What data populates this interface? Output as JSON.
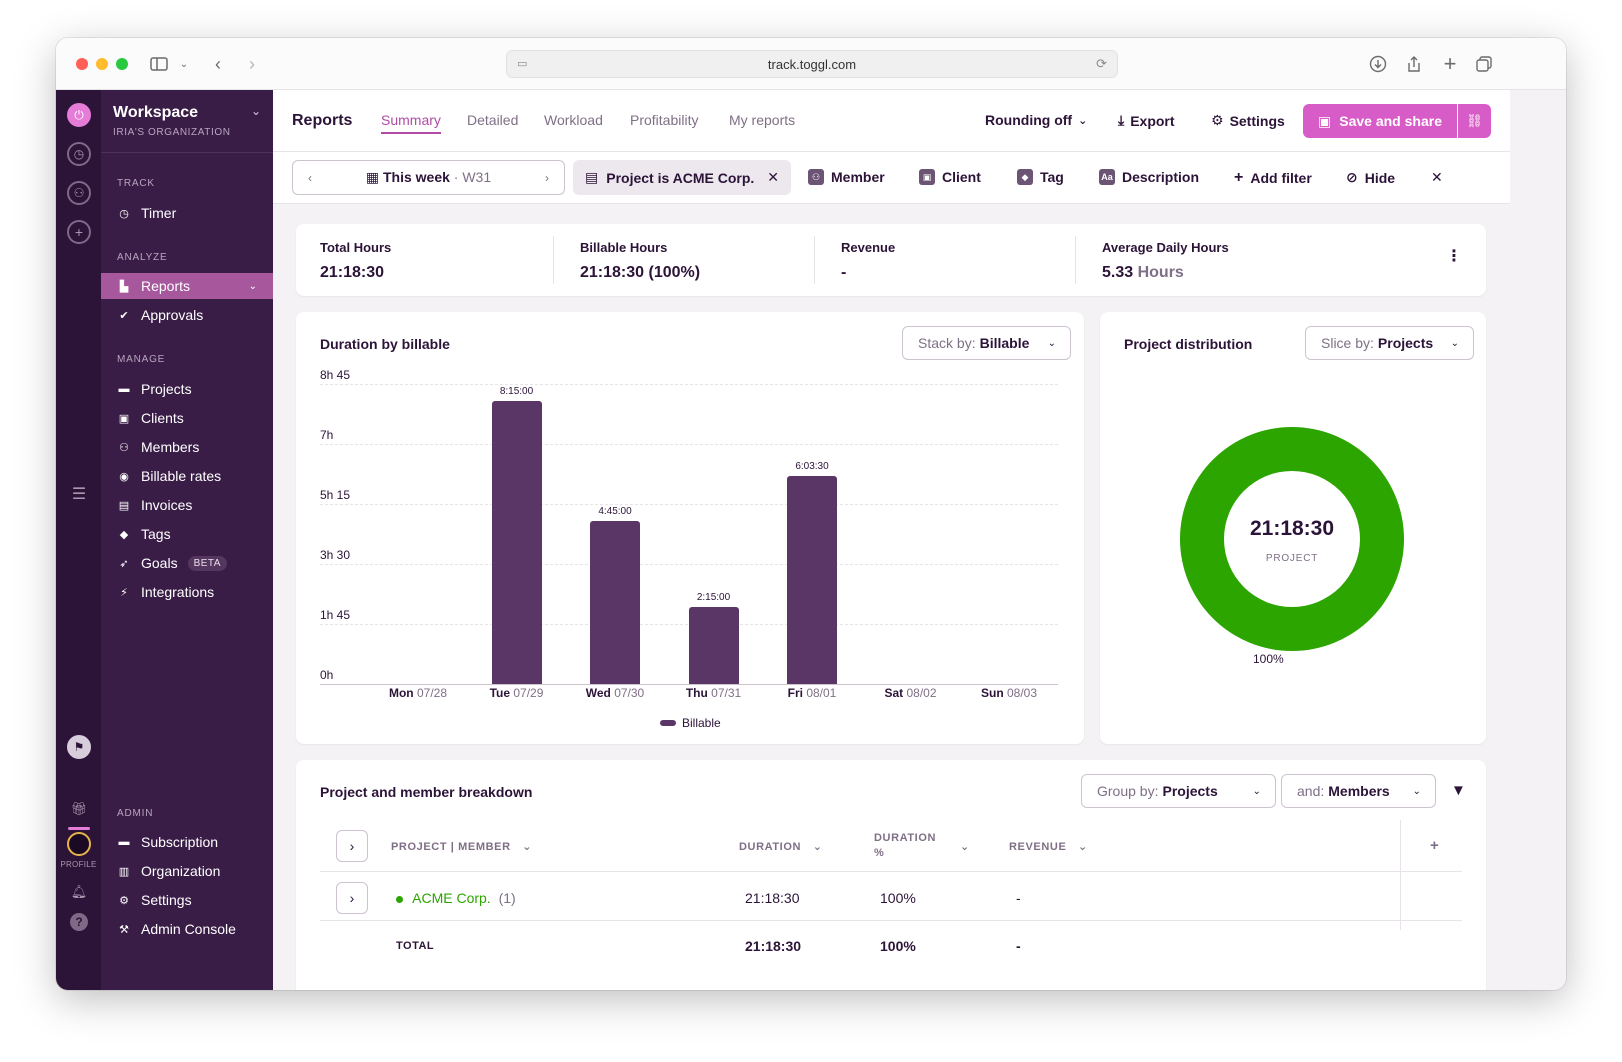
{
  "browser": {
    "url": "track.toggl.com"
  },
  "rail": {
    "profile_label": "PROFILE"
  },
  "sidebar": {
    "workspace_title": "Workspace",
    "workspace_sub": "IRIA'S ORGANIZATION",
    "sections": {
      "track": "TRACK",
      "analyze": "ANALYZE",
      "manage": "MANAGE",
      "admin": "ADMIN"
    },
    "items": {
      "timer": "Timer",
      "reports": "Reports",
      "approvals": "Approvals",
      "projects": "Projects",
      "clients": "Clients",
      "members": "Members",
      "billable_rates": "Billable rates",
      "invoices": "Invoices",
      "tags": "Tags",
      "goals": "Goals",
      "goals_badge": "BETA",
      "integrations": "Integrations",
      "subscription": "Subscription",
      "organization": "Organization",
      "settings": "Settings",
      "admin_console": "Admin Console"
    }
  },
  "header": {
    "title": "Reports",
    "tabs": [
      "Summary",
      "Detailed",
      "Workload",
      "Profitability",
      "My reports"
    ],
    "rounding": "Rounding off",
    "export": "Export",
    "settings": "Settings",
    "save": "Save and share"
  },
  "filters": {
    "week_label": "This week",
    "week_sep": "·",
    "week_num": "W31",
    "project_chip": "Project is ACME Corp.",
    "member": "Member",
    "client": "Client",
    "tag": "Tag",
    "description": "Description",
    "add_filter": "Add filter",
    "hide": "Hide"
  },
  "summary": {
    "total_hours_label": "Total Hours",
    "total_hours_value": "21:18:30",
    "billable_label": "Billable Hours",
    "billable_value": "21:18:30 (100%)",
    "revenue_label": "Revenue",
    "revenue_value": "-",
    "avg_label": "Average Daily Hours",
    "avg_value": "5.33",
    "avg_unit": "Hours"
  },
  "bar_chart": {
    "title": "Duration by billable",
    "stack_prefix": "Stack by:",
    "stack_value": "Billable"
  },
  "chart_data": [
    {
      "type": "bar",
      "title": "Duration by billable",
      "unit": "hours",
      "yticks": [
        "0h",
        "1h 45",
        "3h 30",
        "5h 15",
        "7h",
        "8h 45"
      ],
      "ylim": [
        0,
        8.75
      ],
      "categories": [
        {
          "day": "Mon",
          "date": "07/28"
        },
        {
          "day": "Tue",
          "date": "07/29"
        },
        {
          "day": "Wed",
          "date": "07/30"
        },
        {
          "day": "Thu",
          "date": "07/31"
        },
        {
          "day": "Fri",
          "date": "08/01"
        },
        {
          "day": "Sat",
          "date": "08/02"
        },
        {
          "day": "Sun",
          "date": "08/03"
        }
      ],
      "series": [
        {
          "name": "Billable",
          "color": "#5a3666",
          "values": [
            0,
            8.25,
            4.75,
            2.25,
            6.0583,
            0,
            0
          ],
          "labels": [
            "",
            "8:15:00",
            "4:45:00",
            "2:15:00",
            "6:03:30",
            "",
            ""
          ]
        }
      ],
      "grid": true,
      "legend": "bottom"
    },
    {
      "type": "pie",
      "title": "Project distribution",
      "slices": [
        {
          "name": "ACME Corp.",
          "value": 100,
          "color": "#2ca500"
        }
      ],
      "center_value": "21:18:30",
      "center_label": "PROJECT",
      "slice_label": "100%"
    }
  ],
  "donut": {
    "title": "Project distribution",
    "slice_prefix": "Slice by:",
    "slice_value": "Projects",
    "center_value": "21:18:30",
    "center_label": "PROJECT",
    "pct": "100%"
  },
  "breakdown": {
    "title": "Project and member breakdown",
    "group_prefix": "Group by:",
    "group_value": "Projects",
    "and_prefix": "and:",
    "and_value": "Members",
    "columns": {
      "project": "PROJECT | MEMBER",
      "duration": "DURATION",
      "duration_pct_1": "DURATION",
      "duration_pct_2": "%",
      "revenue": "REVENUE"
    },
    "rows": [
      {
        "project": "ACME Corp.",
        "count": "(1)",
        "duration": "21:18:30",
        "pct": "100%",
        "revenue": "-"
      }
    ],
    "total": {
      "label": "TOTAL",
      "duration": "21:18:30",
      "pct": "100%",
      "revenue": "-"
    }
  }
}
